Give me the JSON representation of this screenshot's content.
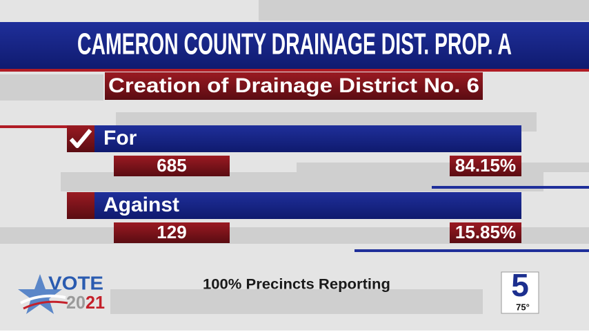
{
  "header": {
    "title": "CAMERON COUNTY DRAINAGE DIST. PROP. A",
    "subtitle": "Creation of Drainage District No. 6"
  },
  "results": [
    {
      "label": "For",
      "votes": "685",
      "percent": "84.15%",
      "winner": true
    },
    {
      "label": "Against",
      "votes": "129",
      "percent": "15.85%",
      "winner": false
    }
  ],
  "footer": {
    "status": "100% Precincts Reporting"
  },
  "logo": {
    "word": "VOTE",
    "year": [
      "20",
      "21"
    ]
  },
  "station": {
    "channel": "5",
    "temperature": "75°"
  }
}
